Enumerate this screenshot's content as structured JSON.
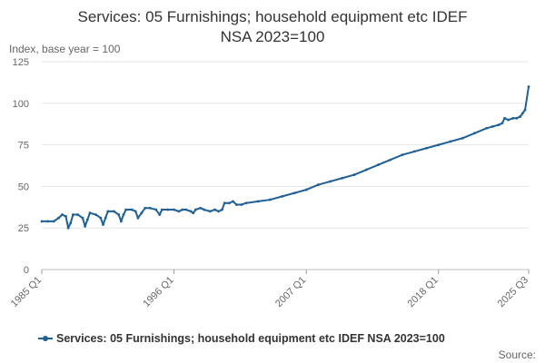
{
  "chart_data": {
    "type": "line",
    "title_lines": [
      "Services: 05 Furnishings; household equipment etc IDEF",
      "NSA 2023=100"
    ],
    "ylabel": "Index, base year = 100",
    "ylim": [
      0,
      125
    ],
    "y_ticks": [
      0,
      25,
      50,
      75,
      100,
      125
    ],
    "x_ticks": [
      {
        "label": "1985 Q1",
        "value": 1985.0
      },
      {
        "label": "1996 Q1",
        "value": 1996.0
      },
      {
        "label": "2007 Q1",
        "value": 2007.0
      },
      {
        "label": "2018 Q1",
        "value": 2018.0
      },
      {
        "label": "2025 Q3",
        "value": 2025.5
      }
    ],
    "xlim": [
      1985.0,
      2025.5
    ],
    "grid": true,
    "legend_position": "bottom",
    "source_label": "Source:",
    "series": [
      {
        "name": "Services: 05 Furnishings; household equipment etc IDEF NSA 2023=100",
        "color": "#206095",
        "points": [
          [
            1985.0,
            29
          ],
          [
            1985.5,
            29
          ],
          [
            1986.0,
            29
          ],
          [
            1986.4,
            31
          ],
          [
            1986.7,
            33
          ],
          [
            1987.0,
            32
          ],
          [
            1987.2,
            25
          ],
          [
            1987.4,
            28
          ],
          [
            1987.6,
            33
          ],
          [
            1988.0,
            33
          ],
          [
            1988.4,
            31
          ],
          [
            1988.6,
            26
          ],
          [
            1988.8,
            30
          ],
          [
            1989.0,
            34
          ],
          [
            1989.5,
            33
          ],
          [
            1989.9,
            31
          ],
          [
            1990.1,
            27
          ],
          [
            1990.3,
            31
          ],
          [
            1990.5,
            35
          ],
          [
            1991.0,
            35
          ],
          [
            1991.4,
            33
          ],
          [
            1991.6,
            29
          ],
          [
            1991.8,
            33
          ],
          [
            1992.0,
            36
          ],
          [
            1992.5,
            36
          ],
          [
            1992.8,
            35
          ],
          [
            1993.0,
            31
          ],
          [
            1993.3,
            34
          ],
          [
            1993.6,
            37
          ],
          [
            1994.0,
            37
          ],
          [
            1994.5,
            36
          ],
          [
            1994.8,
            33
          ],
          [
            1995.0,
            36
          ],
          [
            1995.5,
            36
          ],
          [
            1996.0,
            36
          ],
          [
            1996.4,
            35
          ],
          [
            1996.7,
            36
          ],
          [
            1997.0,
            36
          ],
          [
            1997.4,
            35
          ],
          [
            1997.6,
            34
          ],
          [
            1997.8,
            36
          ],
          [
            1998.2,
            37
          ],
          [
            1998.5,
            36
          ],
          [
            1999.0,
            35
          ],
          [
            1999.4,
            36
          ],
          [
            1999.7,
            35
          ],
          [
            2000.0,
            36
          ],
          [
            2000.2,
            40
          ],
          [
            2000.6,
            40
          ],
          [
            2000.9,
            41
          ],
          [
            2001.2,
            39
          ],
          [
            2001.6,
            39
          ],
          [
            2002.0,
            40
          ],
          [
            2003.0,
            41
          ],
          [
            2004.0,
            42
          ],
          [
            2005.0,
            44
          ],
          [
            2006.0,
            46
          ],
          [
            2007.0,
            48
          ],
          [
            2008.0,
            51
          ],
          [
            2009.0,
            53
          ],
          [
            2010.0,
            55
          ],
          [
            2011.0,
            57
          ],
          [
            2012.0,
            60
          ],
          [
            2013.0,
            63
          ],
          [
            2014.0,
            66
          ],
          [
            2015.0,
            69
          ],
          [
            2016.0,
            71
          ],
          [
            2017.0,
            73
          ],
          [
            2018.0,
            75
          ],
          [
            2019.0,
            77
          ],
          [
            2020.0,
            79
          ],
          [
            2021.0,
            82
          ],
          [
            2022.0,
            85
          ],
          [
            2022.5,
            86
          ],
          [
            2023.0,
            87
          ],
          [
            2023.3,
            88
          ],
          [
            2023.5,
            91
          ],
          [
            2023.8,
            90
          ],
          [
            2024.2,
            91
          ],
          [
            2024.5,
            91
          ],
          [
            2024.8,
            92
          ],
          [
            2025.0,
            94
          ],
          [
            2025.2,
            96
          ],
          [
            2025.5,
            110
          ]
        ]
      }
    ]
  }
}
